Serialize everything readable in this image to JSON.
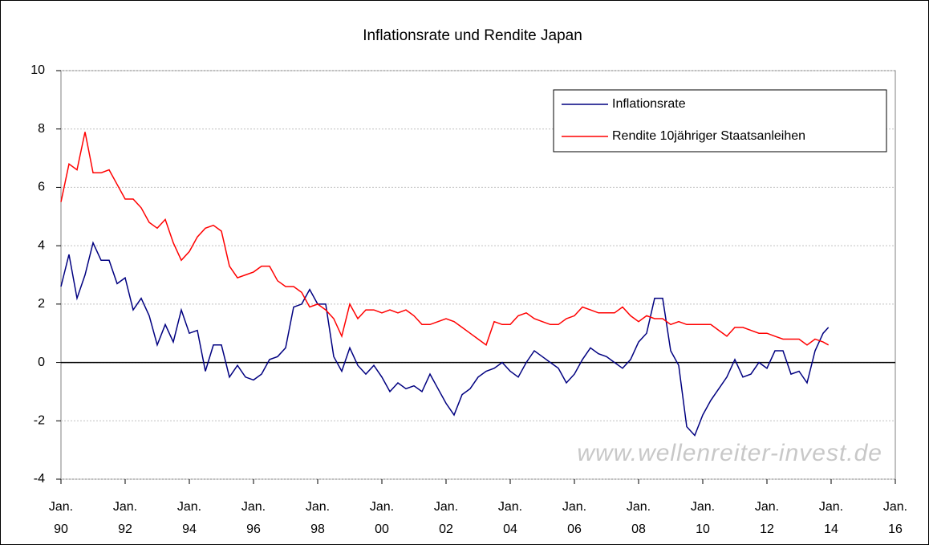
{
  "chart_data": {
    "type": "line",
    "title": "Inflationsrate und Rendite Japan",
    "watermark": "www.wellenreiter-invest.de",
    "x": [
      "1990-01",
      "1990-04",
      "1990-07",
      "1990-10",
      "1991-01",
      "1991-04",
      "1991-07",
      "1991-10",
      "1992-01",
      "1992-04",
      "1992-07",
      "1992-10",
      "1993-01",
      "1993-04",
      "1993-07",
      "1993-10",
      "1994-01",
      "1994-04",
      "1994-07",
      "1994-10",
      "1995-01",
      "1995-04",
      "1995-07",
      "1995-10",
      "1996-01",
      "1996-04",
      "1996-07",
      "1996-10",
      "1997-01",
      "1997-04",
      "1997-07",
      "1997-10",
      "1998-01",
      "1998-04",
      "1998-07",
      "1998-10",
      "1999-01",
      "1999-04",
      "1999-07",
      "1999-10",
      "2000-01",
      "2000-04",
      "2000-07",
      "2000-10",
      "2001-01",
      "2001-04",
      "2001-07",
      "2001-10",
      "2002-01",
      "2002-04",
      "2002-07",
      "2002-10",
      "2003-01",
      "2003-04",
      "2003-07",
      "2003-10",
      "2004-01",
      "2004-04",
      "2004-07",
      "2004-10",
      "2005-01",
      "2005-04",
      "2005-07",
      "2005-10",
      "2006-01",
      "2006-04",
      "2006-07",
      "2006-10",
      "2007-01",
      "2007-04",
      "2007-07",
      "2007-10",
      "2008-01",
      "2008-04",
      "2008-07",
      "2008-10",
      "2009-01",
      "2009-04",
      "2009-07",
      "2009-10",
      "2010-01",
      "2010-04",
      "2010-07",
      "2010-10",
      "2011-01",
      "2011-04",
      "2011-07",
      "2011-10",
      "2012-01",
      "2012-04",
      "2012-07",
      "2012-10",
      "2013-01",
      "2013-04",
      "2013-07",
      "2013-10",
      "2013-12"
    ],
    "series": [
      {
        "name": "Inflationsrate",
        "color": "#000080",
        "values": [
          2.6,
          3.7,
          2.2,
          3.0,
          4.1,
          3.5,
          3.5,
          2.7,
          2.9,
          1.8,
          2.2,
          1.6,
          0.6,
          1.3,
          0.7,
          1.8,
          1.0,
          1.1,
          -0.3,
          0.6,
          0.6,
          -0.5,
          -0.1,
          -0.5,
          -0.6,
          -0.4,
          0.1,
          0.2,
          0.5,
          1.9,
          2.0,
          2.5,
          2.0,
          2.0,
          0.2,
          -0.3,
          0.5,
          -0.1,
          -0.4,
          -0.1,
          -0.5,
          -1.0,
          -0.7,
          -0.9,
          -0.8,
          -1.0,
          -0.4,
          -0.9,
          -1.4,
          -1.8,
          -1.1,
          -0.9,
          -0.5,
          -0.3,
          -0.2,
          0.0,
          -0.3,
          -0.5,
          0.0,
          0.4,
          0.2,
          0.0,
          -0.2,
          -0.7,
          -0.4,
          0.1,
          0.5,
          0.3,
          0.2,
          0.0,
          -0.2,
          0.1,
          0.7,
          1.0,
          2.2,
          2.2,
          0.4,
          -0.1,
          -2.2,
          -2.5,
          -1.8,
          -1.3,
          -0.9,
          -0.5,
          0.1,
          -0.5,
          -0.4,
          0.0,
          -0.2,
          0.4,
          0.4,
          -0.4,
          -0.3,
          -0.7,
          0.4,
          1.0,
          1.2
        ]
      },
      {
        "name": "Rendite 10jähriger Staatsanleihen",
        "color": "#ff0000",
        "values": [
          5.5,
          6.8,
          6.6,
          7.9,
          6.5,
          6.5,
          6.6,
          6.1,
          5.6,
          5.6,
          5.3,
          4.8,
          4.6,
          4.9,
          4.1,
          3.5,
          3.8,
          4.3,
          4.6,
          4.7,
          4.5,
          3.3,
          2.9,
          3.0,
          3.1,
          3.3,
          3.3,
          2.8,
          2.6,
          2.6,
          2.4,
          1.9,
          2.0,
          1.8,
          1.5,
          0.9,
          2.0,
          1.5,
          1.8,
          1.8,
          1.7,
          1.8,
          1.7,
          1.8,
          1.6,
          1.3,
          1.3,
          1.4,
          1.5,
          1.4,
          1.2,
          1.0,
          0.8,
          0.6,
          1.4,
          1.3,
          1.3,
          1.6,
          1.7,
          1.5,
          1.4,
          1.3,
          1.3,
          1.5,
          1.6,
          1.9,
          1.8,
          1.7,
          1.7,
          1.7,
          1.9,
          1.6,
          1.4,
          1.6,
          1.5,
          1.5,
          1.3,
          1.4,
          1.3,
          1.3,
          1.3,
          1.3,
          1.1,
          0.9,
          1.2,
          1.2,
          1.1,
          1.0,
          1.0,
          0.9,
          0.8,
          0.8,
          0.8,
          0.6,
          0.8,
          0.7,
          0.6
        ]
      }
    ],
    "xlim": [
      "1990-01",
      "2016-01"
    ],
    "xticks": [
      {
        "value": "1990-01",
        "label": "Jan. 90"
      },
      {
        "value": "1992-01",
        "label": "Jan. 92"
      },
      {
        "value": "1994-01",
        "label": "Jan. 94"
      },
      {
        "value": "1996-01",
        "label": "Jan. 96"
      },
      {
        "value": "1998-01",
        "label": "Jan. 98"
      },
      {
        "value": "2000-01",
        "label": "Jan. 00"
      },
      {
        "value": "2002-01",
        "label": "Jan. 02"
      },
      {
        "value": "2004-01",
        "label": "Jan. 04"
      },
      {
        "value": "2006-01",
        "label": "Jan. 06"
      },
      {
        "value": "2008-01",
        "label": "Jan. 08"
      },
      {
        "value": "2010-01",
        "label": "Jan. 10"
      },
      {
        "value": "2012-01",
        "label": "Jan. 12"
      },
      {
        "value": "2014-01",
        "label": "Jan. 14"
      },
      {
        "value": "2016-01",
        "label": "Jan. 16"
      }
    ],
    "ylim": [
      -4,
      10
    ],
    "yticks": [
      -4,
      -2,
      0,
      2,
      4,
      6,
      8,
      10
    ],
    "grid": true,
    "legend": "upper right"
  }
}
